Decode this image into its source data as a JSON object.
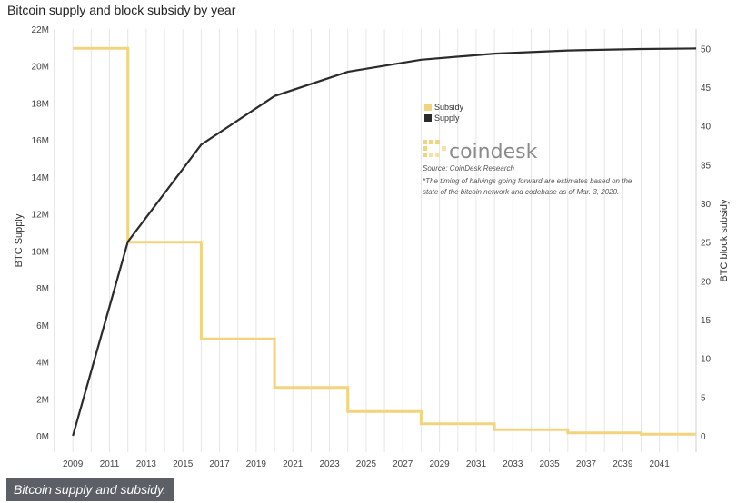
{
  "chart_data": {
    "type": "line",
    "title": "Bitcoin supply and block subsidy by year",
    "x": {
      "ticks": [
        2009,
        2011,
        2013,
        2015,
        2017,
        2019,
        2021,
        2023,
        2025,
        2027,
        2029,
        2031,
        2033,
        2035,
        2037,
        2039,
        2041
      ],
      "range": [
        2008,
        2043
      ]
    },
    "y_left": {
      "label": "BTC Supply",
      "ticks": [
        "0M",
        "2M",
        "4M",
        "6M",
        "8M",
        "10M",
        "12M",
        "14M",
        "16M",
        "18M",
        "20M",
        "22M"
      ],
      "range": [
        0,
        22
      ]
    },
    "y_right": {
      "label": "BTC block subsidy",
      "ticks": [
        "0",
        "5",
        "10",
        "15",
        "20",
        "25",
        "30",
        "35",
        "40",
        "45",
        "50"
      ],
      "range": [
        0,
        52.5
      ]
    },
    "grid": "vertical",
    "legend": {
      "position": "top-right",
      "entries": [
        "Subsidy",
        "Supply"
      ]
    },
    "series": [
      {
        "name": "Subsidy",
        "axis": "right",
        "color": "#f2d47e",
        "step": true,
        "x": [
          2009,
          2012,
          2016,
          2020,
          2024,
          2028,
          2032,
          2036,
          2040,
          2043
        ],
        "values": [
          50,
          25,
          12.5,
          6.25,
          3.125,
          1.5625,
          0.78125,
          0.390625,
          0.1953125,
          0.1953125
        ]
      },
      {
        "name": "Supply",
        "axis": "left",
        "color": "#2b2b2b",
        "step": false,
        "x": [
          2009,
          2012,
          2016,
          2020,
          2024,
          2028,
          2032,
          2036,
          2040,
          2043
        ],
        "values": [
          0,
          10.5,
          15.75,
          18.375,
          19.6875,
          20.34,
          20.67,
          20.84,
          20.92,
          20.95
        ]
      }
    ]
  },
  "watermark": {
    "brand": "coindesk",
    "source": "Source: CoinDesk Research",
    "note_line1": "*The timing of halvings going forward are estimates based on the",
    "note_line2": "state of the bitcoin network and codebase as of Mar. 3, 2020."
  },
  "caption": "Bitcoin supply and subsidy.",
  "colors": {
    "caption_bg": "#5d5f66",
    "grid": "#e6e6e6",
    "subsidy": "#f2d47e",
    "supply": "#2b2b2b"
  }
}
